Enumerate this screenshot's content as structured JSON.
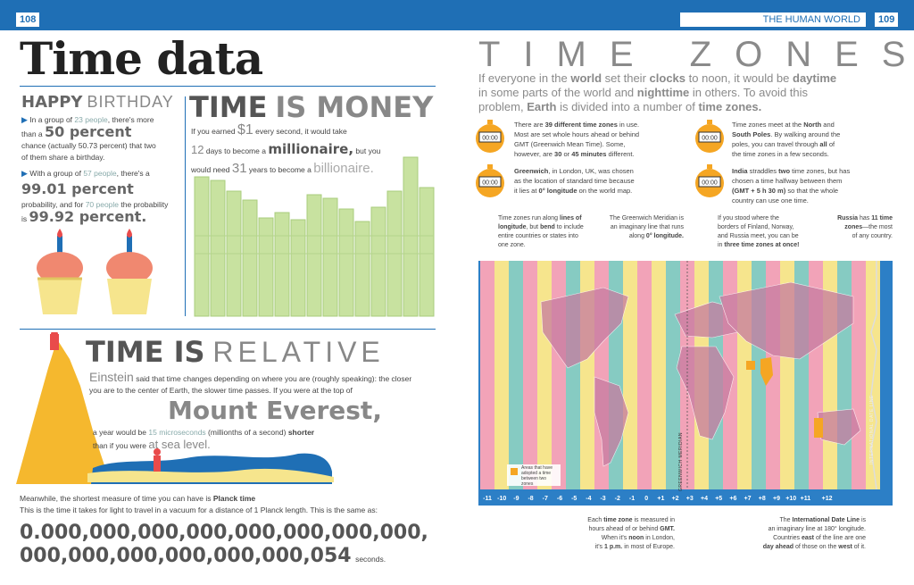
{
  "header": {
    "left_page": "108",
    "section": "THE HUMAN WORLD",
    "right_page": "109"
  },
  "title": "Time data",
  "birthday": {
    "heading_a": "HAPPY",
    "heading_b": "BIRTHDAY",
    "p1_a": "In a group of",
    "p1_n1": "23 people",
    "p1_b": ", there's more",
    "p1_c": "than a",
    "p1_big": "50 percent",
    "p1_d": "chance (actually 50.73 percent) that two",
    "p1_e": "of them share a birthday.",
    "p2_a": "With a group of",
    "p2_n1": "57 people",
    "p2_b": ", there's a",
    "p2_big": "99.01 percent",
    "p2_c": "probability, and for",
    "p2_n2": "70 people",
    "p2_d": "the probability",
    "p2_e": "is",
    "p2_big2": "99.92 percent."
  },
  "money": {
    "heading_a": "TIME",
    "heading_b": "IS MONEY",
    "l1_a": "If you earned",
    "l1_big": "$1",
    "l1_b": "every second, it would take",
    "l2_a": "12",
    "l2_b": "days to become a",
    "l2_big": "millionaire,",
    "l2_c": "but you",
    "l3_a": "would need",
    "l3_big": "31",
    "l3_b": "years to become a",
    "l3_c": "billionaire."
  },
  "relative": {
    "heading_a": "TIME IS",
    "heading_b": "RELATIVE",
    "p1_big": "Einstein",
    "p1_a": "said that time changes depending on where you are (roughly speaking): the closer",
    "p1_b": "you are to the center of Earth, the slower time passes. If you were at the top of",
    "everest": "Mount Everest,",
    "p2_a": "a year would be",
    "p2_n": "15",
    "p2_n2": "microseconds",
    "p2_b": "(millionths of a second)",
    "p2_c": "shorter",
    "p3_a": "than if you were",
    "p3_big": "at sea level.",
    "planck_1a": "Meanwhile, the shortest measure of time you can have is",
    "planck_1b": "Planck time",
    "planck_2": "This is the time it takes for light to travel in a vacuum for a distance of 1 Planck length. This is the same as:",
    "big_num_1": "0.000,000,000,000,000,000,000,000,",
    "big_num_2": "000,000,000,000,000,000,054",
    "seconds": "seconds."
  },
  "zones": {
    "heading": "TIME ZONES",
    "intro_1a": "If everyone in the",
    "intro_1b": "world",
    "intro_1c": "set their",
    "intro_1d": "clocks",
    "intro_1e": "to noon, it would be",
    "intro_1f": "daytime",
    "intro_2a": "in some parts of the world and",
    "intro_2b": "nighttime",
    "intro_2c": "in others. To avoid this",
    "intro_3a": "problem,",
    "intro_3b": "Earth",
    "intro_3c": "is divided into a number of",
    "intro_3d": "time zones.",
    "clock_face": "00:00",
    "f1": [
      "There are",
      "39 different time zones",
      "in use.",
      "Most are set whole hours ahead or behind",
      "GMT (Greenwich Mean Time). Some,",
      "however, are",
      "30",
      "or",
      "45 minutes",
      "different."
    ],
    "f2": [
      "Greenwich",
      ", in London, UK, was chosen",
      "as the location of standard time because",
      "it lies at",
      "0° longitude",
      "on the world map."
    ],
    "f3": [
      "Time zones meet at the",
      "North",
      "and",
      "South Poles",
      ". By walking around the",
      "poles, you can travel through",
      "all",
      "of",
      "the time zones in a few seconds."
    ],
    "f4": [
      "India",
      "straddles",
      "two",
      "time zones, but has",
      "chosen a time halfway between them",
      "(GMT + 5 h 30 m)",
      "so that the whole",
      "country can use one time."
    ],
    "n1": [
      "Time zones run along",
      "lines of longitude",
      ", but",
      "bend",
      "to",
      "include entire countries",
      "or states into one zone."
    ],
    "n2": [
      "The Greenwich Meridian is",
      "an imaginary line that runs",
      "along",
      "0° longitude."
    ],
    "n3": [
      "If you stood where the",
      "borders of Finland, Norway,",
      "and Russia meet, you can be",
      "in",
      "three time zones at once!"
    ],
    "n4": [
      "Russia",
      "has",
      "11 time zones",
      "—the most",
      "of any country."
    ],
    "legend": "Areas that have adopted a time between two zones",
    "gm_label": "GREENWICH MERIDIAN",
    "idl_label": "INTERNATIONAL DATE LINE",
    "offsets": [
      "-11",
      "-10",
      "-9",
      "-8",
      "-7",
      "-6",
      "-5",
      "-4",
      "-3",
      "-2",
      "-1",
      "0",
      "+1",
      "+2",
      "+3",
      "+4",
      "+5",
      "+6",
      "+7",
      "+8",
      "+9",
      "+10",
      "+11",
      "+12"
    ],
    "b1": [
      "Each",
      "time zone",
      "is measured in",
      "hours ahead of or behind",
      "GMT.",
      "When it's",
      "noon",
      "in London,",
      "it's",
      "1 p.m.",
      "in most of Europe."
    ],
    "b2": [
      "The",
      "International Date Line",
      "is",
      "an imaginary line at 180° longitude.",
      "Countries",
      "east",
      "of the line are one",
      "day",
      "ahead",
      "of those on the",
      "west",
      "of it."
    ]
  },
  "colors": {
    "blue": "#1f6fb5",
    "pink": "#f2a3b8",
    "yellow": "#f6e58d",
    "teal": "#86cbc2",
    "orange": "#f5a623",
    "money_green": "#c8e2a0"
  }
}
